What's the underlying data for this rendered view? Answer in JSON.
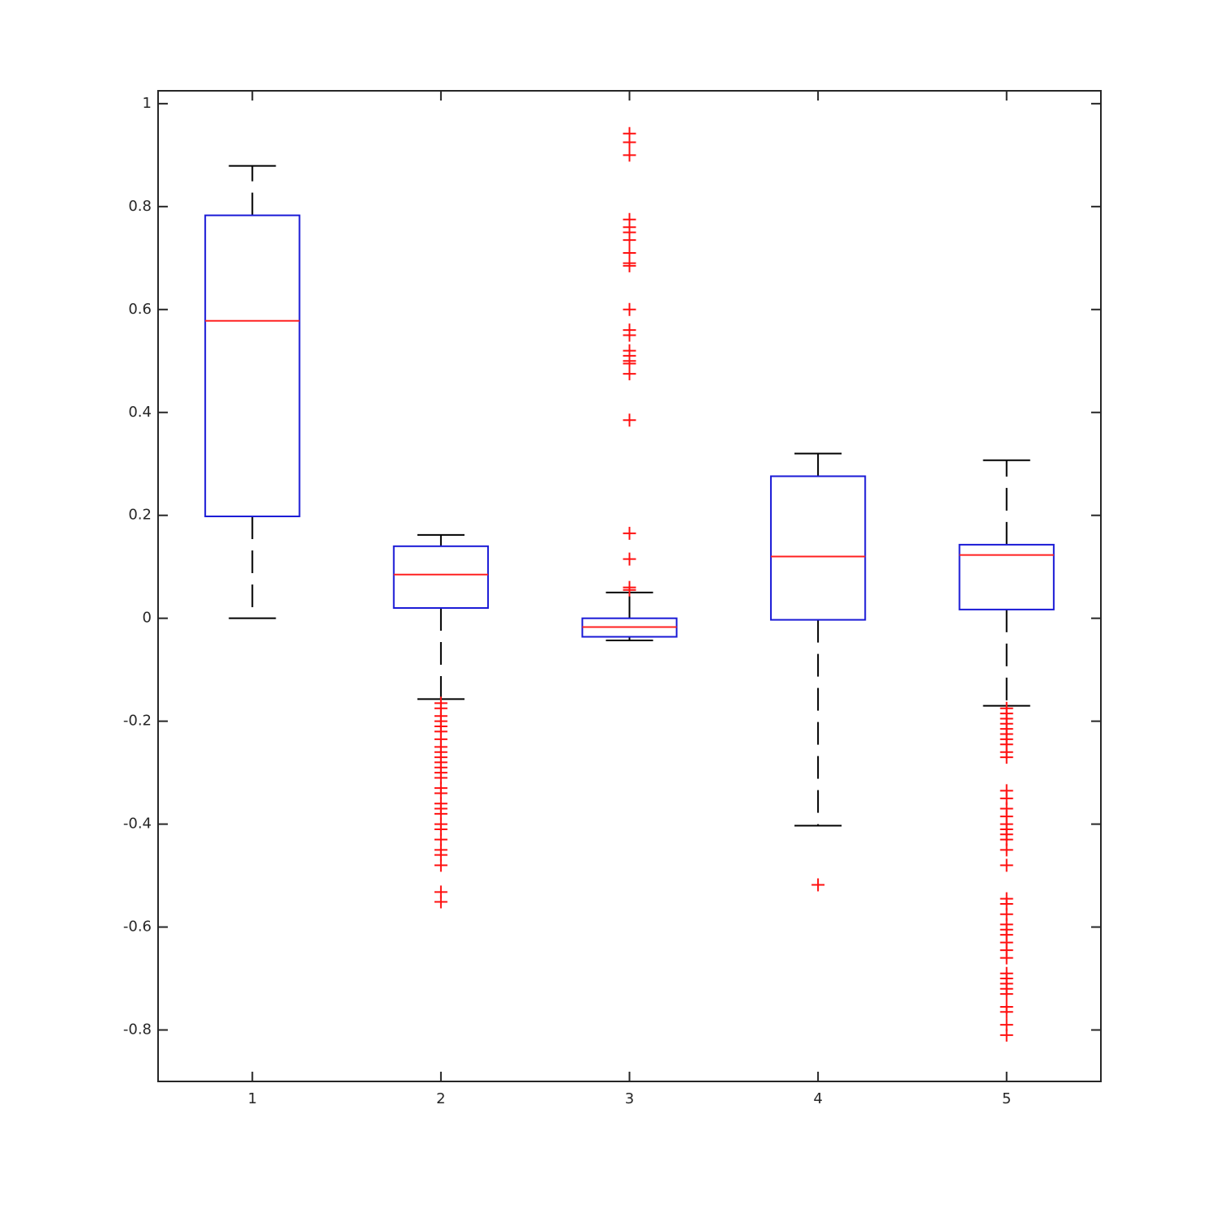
{
  "chart_data": {
    "type": "box",
    "xlim": [
      0.5,
      5.5
    ],
    "ylim": [
      -0.9,
      1.025
    ],
    "xticks": [
      1,
      2,
      3,
      4,
      5
    ],
    "yticks": [
      1,
      0.8,
      0.6,
      0.4,
      0.2,
      0,
      -0.2,
      -0.4,
      -0.6,
      -0.8
    ],
    "box_color": "#1a1ad6",
    "median_color": "#ff2020",
    "whisker_color": "#000000",
    "outlier_color": "#ff1010",
    "boxes": [
      {
        "x": 1,
        "whisker_low": 0,
        "q1": 0.198,
        "median": 0.578,
        "q3": 0.783,
        "whisker_high": 0.879,
        "outliers": []
      },
      {
        "x": 2,
        "whisker_low": -0.157,
        "q1": 0.02,
        "median": 0.085,
        "q3": 0.14,
        "whisker_high": 0.162,
        "outliers": [
          -0.165,
          -0.175,
          -0.19,
          -0.2,
          -0.21,
          -0.22,
          -0.235,
          -0.25,
          -0.26,
          -0.27,
          -0.28,
          -0.29,
          -0.3,
          -0.31,
          -0.33,
          -0.34,
          -0.36,
          -0.37,
          -0.38,
          -0.4,
          -0.41,
          -0.43,
          -0.45,
          -0.46,
          -0.48,
          -0.532,
          -0.551
        ]
      },
      {
        "x": 3,
        "whisker_low": -0.043,
        "q1": -0.036,
        "median": -0.017,
        "q3": 0,
        "whisker_high": 0.05,
        "outliers": [
          0.942,
          0.925,
          0.9,
          0.775,
          0.76,
          0.75,
          0.735,
          0.71,
          0.69,
          0.685,
          0.6,
          0.56,
          0.55,
          0.52,
          0.51,
          0.5,
          0.495,
          0.475,
          0.385,
          0.165,
          0.115,
          0.06,
          0.055
        ]
      },
      {
        "x": 4,
        "whisker_low": -0.403,
        "q1": -0.003,
        "median": 0.12,
        "q3": 0.276,
        "whisker_high": 0.32,
        "outliers": [
          -0.518
        ]
      },
      {
        "x": 5,
        "whisker_low": -0.17,
        "q1": 0.017,
        "median": 0.123,
        "q3": 0.143,
        "whisker_high": 0.307,
        "outliers": [
          -0.175,
          -0.185,
          -0.195,
          -0.205,
          -0.215,
          -0.225,
          -0.235,
          -0.245,
          -0.26,
          -0.27,
          -0.335,
          -0.35,
          -0.37,
          -0.385,
          -0.4,
          -0.41,
          -0.42,
          -0.43,
          -0.45,
          -0.48,
          -0.545,
          -0.555,
          -0.575,
          -0.595,
          -0.605,
          -0.615,
          -0.63,
          -0.645,
          -0.66,
          -0.69,
          -0.7,
          -0.71,
          -0.72,
          -0.73,
          -0.755,
          -0.765,
          -0.79,
          -0.81
        ]
      }
    ]
  }
}
